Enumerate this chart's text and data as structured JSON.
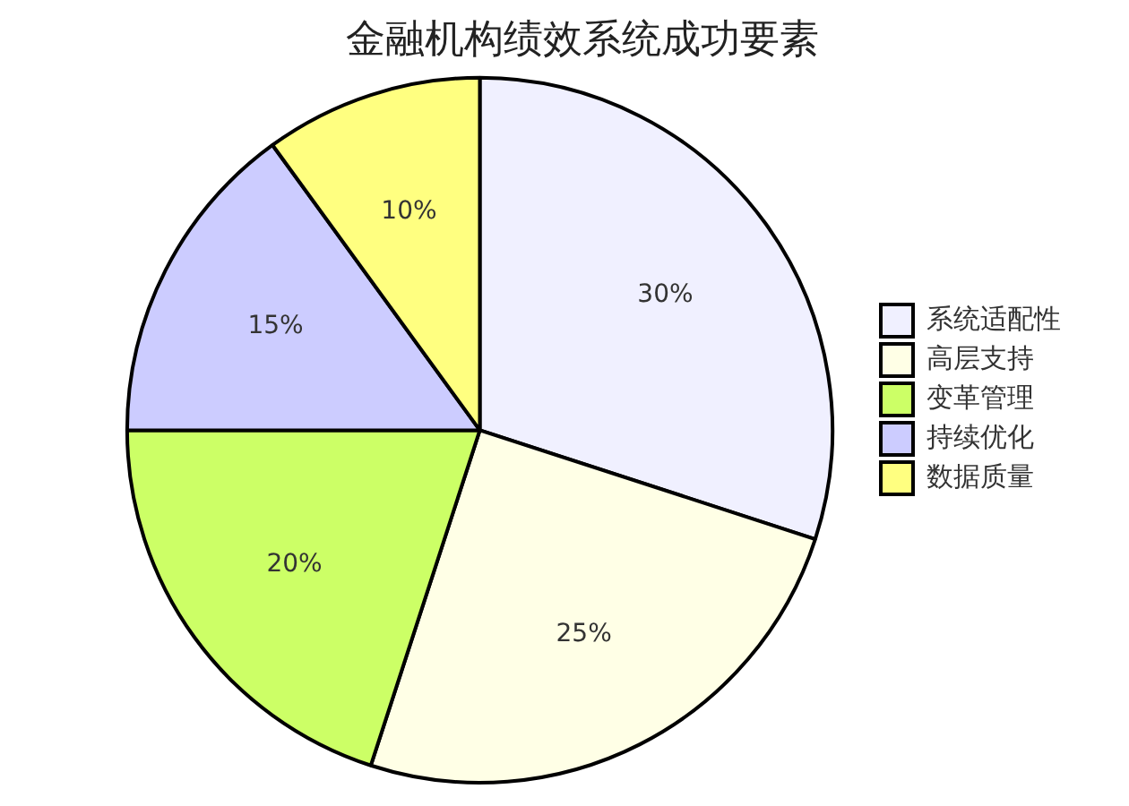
{
  "chart_data": {
    "type": "pie",
    "title": "金融机构绩效系统成功要素",
    "categories": [
      "系统适配性",
      "高层支持",
      "变革管理",
      "持续优化",
      "数据质量"
    ],
    "values": [
      30,
      25,
      20,
      15,
      10
    ],
    "value_labels": [
      "30%",
      "25%",
      "20%",
      "15%",
      "10%"
    ],
    "colors": [
      "#f0f0ff",
      "#ffffe6",
      "#ccff66",
      "#ccccff",
      "#ffff80"
    ],
    "legend": "right"
  }
}
